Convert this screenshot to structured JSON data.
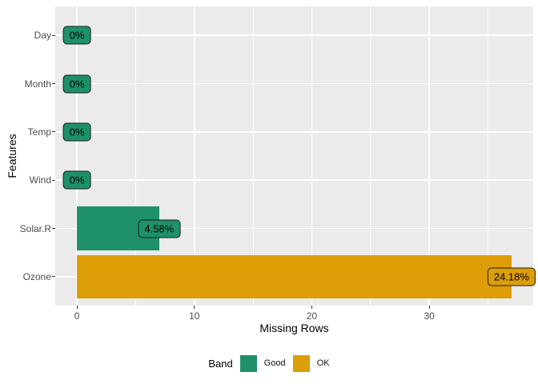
{
  "chart_data": {
    "type": "bar",
    "orientation": "horizontal",
    "title": "",
    "xlabel": "Missing Rows",
    "ylabel": "Features",
    "categories": [
      "Day",
      "Month",
      "Temp",
      "Wind",
      "Solar.R",
      "Ozone"
    ],
    "series": [
      {
        "name": "Missing Rows",
        "values": [
          0,
          0,
          0,
          0,
          7,
          37
        ],
        "percent_labels": [
          "0%",
          "0%",
          "0%",
          "0%",
          "4.58%",
          "24.18%"
        ],
        "bands": [
          "Good",
          "Good",
          "Good",
          "Good",
          "Good",
          "OK"
        ]
      }
    ],
    "x_major_ticks": [
      0,
      10,
      20,
      30
    ],
    "x_minor_ticks": [
      5,
      15,
      25,
      35
    ],
    "xlim": [
      -1.85,
      38.85
    ],
    "grid": "major and minor vertical, major horizontal, white on gray panel",
    "legend": {
      "title": "Band",
      "position": "bottom",
      "items": [
        {
          "label": "Good",
          "color": "#1E9168"
        },
        {
          "label": "OK",
          "color": "#DD9D06"
        }
      ]
    },
    "colors": {
      "Good": "#1E9168",
      "OK": "#DD9D06",
      "panel_bg": "#EBEBEB",
      "grid_line": "#FFFFFF",
      "tick_label": "#4D4D4D",
      "axis_title": "#000000",
      "label_border": "#1A1A1A",
      "label_text": "#000000"
    }
  }
}
